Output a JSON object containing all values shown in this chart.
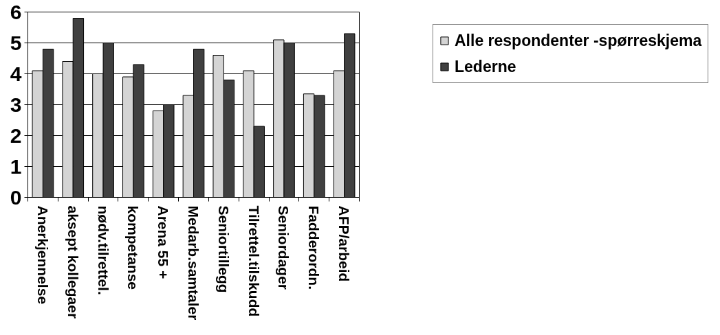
{
  "chart_data": {
    "type": "bar",
    "categories": [
      "Anerkjennelse",
      "aksept kollegaer",
      "nødv.tilrettel.",
      "kompetanse",
      "Arena 55 +",
      "Medarb.samtaler",
      "Seniortillegg",
      "Tilrettel.tilskudd",
      "Seniordager",
      "Fadderordn.",
      "AFP/arbeid"
    ],
    "series": [
      {
        "name": "Alle respondenter -spørreskjema",
        "color": "#d4d4d4",
        "values": [
          4.1,
          4.4,
          4.0,
          3.9,
          2.8,
          3.3,
          4.6,
          4.1,
          5.1,
          3.35,
          4.1
        ]
      },
      {
        "name": "Lederne",
        "color": "#404040",
        "values": [
          4.8,
          5.8,
          5.0,
          4.3,
          3.0,
          4.8,
          3.8,
          2.3,
          5.0,
          3.3,
          5.3
        ]
      }
    ],
    "ylim": [
      0,
      6
    ],
    "yticks": [
      0,
      1,
      2,
      3,
      4,
      5,
      6
    ],
    "grid": "y",
    "legend": "right"
  }
}
